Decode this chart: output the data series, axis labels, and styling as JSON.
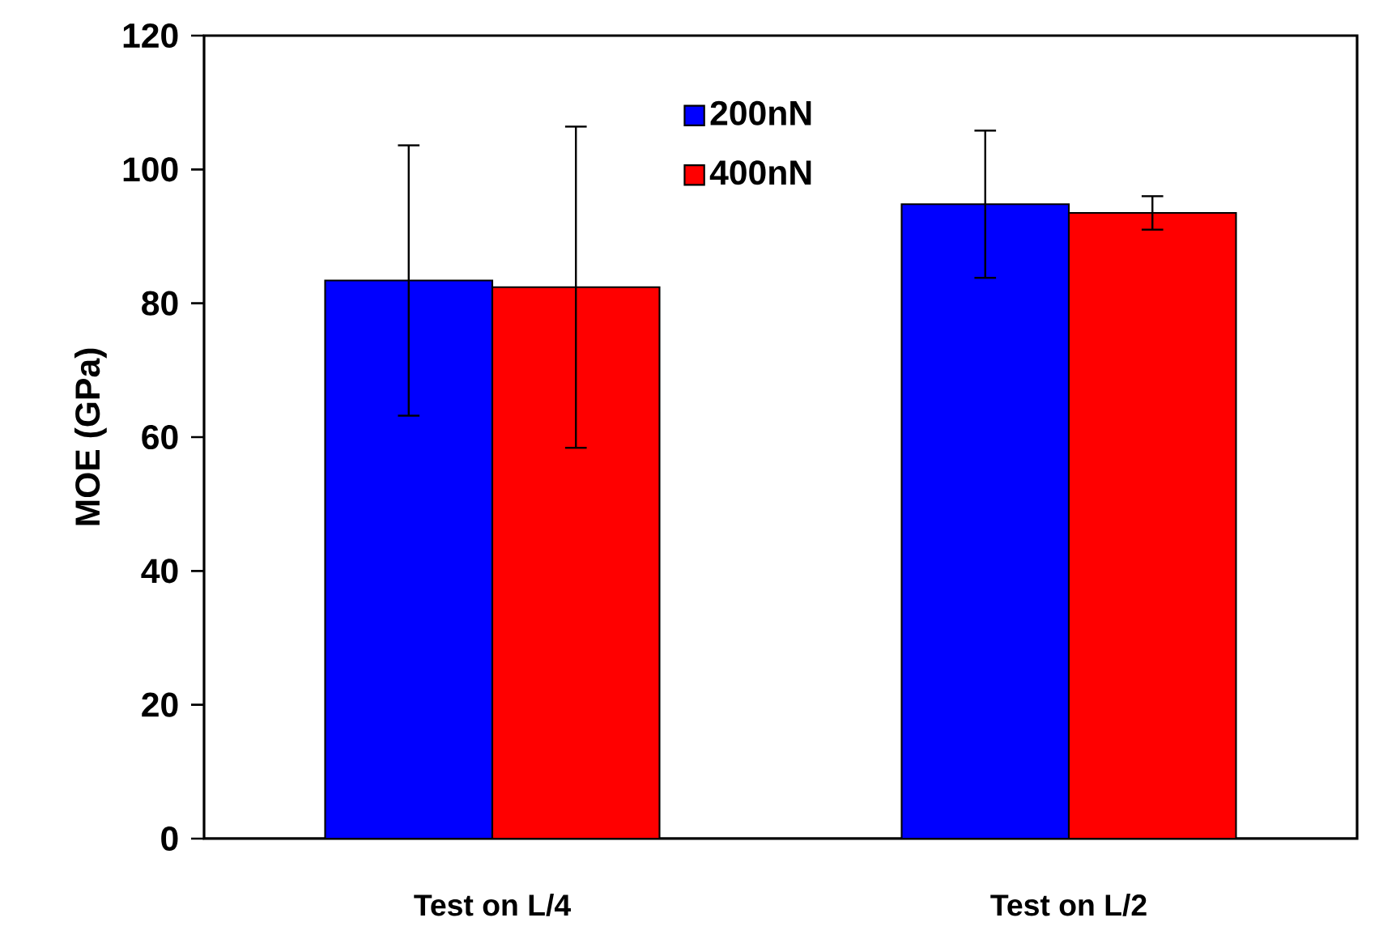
{
  "chart_data": {
    "type": "bar",
    "ylabel": "MOE (GPa)",
    "categories": [
      "Test on L/4",
      "Test on L/2"
    ],
    "series": [
      {
        "name": "200nN",
        "color": "#0000ff",
        "values": [
          83.4,
          94.8
        ],
        "errors": [
          20.2,
          11
        ]
      },
      {
        "name": "400nN",
        "color": "#ff0000",
        "values": [
          82.4,
          93.5
        ],
        "errors": [
          24,
          2.5
        ]
      }
    ],
    "ylim": [
      0,
      120
    ],
    "yticks": [
      0,
      20,
      40,
      60,
      80,
      100,
      120
    ],
    "legend": "top",
    "grid": false
  }
}
